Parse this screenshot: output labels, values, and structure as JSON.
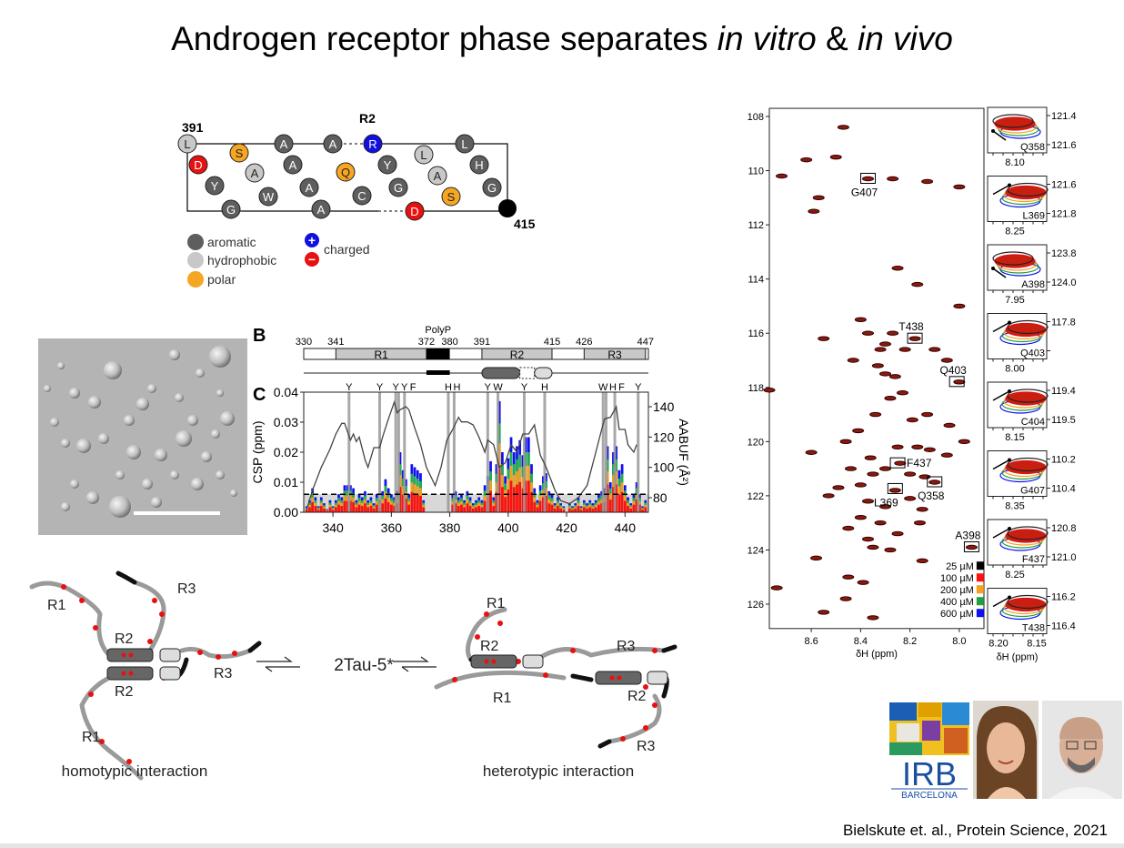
{
  "slide": {
    "title_prefix": "Androgen receptor phase separates ",
    "title_vitro": "in vitro",
    "title_amp": " & ",
    "title_vivo": "in vivo",
    "citation": "Bielskute et. al., Protein Science, 2021"
  },
  "helical_wheel": {
    "region_label": "R2",
    "start_label": "391",
    "end_label": "415",
    "residues": [
      {
        "aa": "L",
        "type": "hydrophobic"
      },
      {
        "aa": "D",
        "type": "negative"
      },
      {
        "aa": "Y",
        "type": "aromatic"
      },
      {
        "aa": "G",
        "type": "aromatic"
      },
      {
        "aa": "S",
        "type": "polar"
      },
      {
        "aa": "A",
        "type": "hydrophobic"
      },
      {
        "aa": "W",
        "type": "aromatic"
      },
      {
        "aa": "A",
        "type": "aromatic"
      },
      {
        "aa": "A",
        "type": "aromatic"
      },
      {
        "aa": "A",
        "type": "aromatic"
      },
      {
        "aa": "A",
        "type": "aromatic"
      },
      {
        "aa": "A",
        "type": "aromatic"
      },
      {
        "aa": "Q",
        "type": "polar"
      },
      {
        "aa": "C",
        "type": "aromatic"
      },
      {
        "aa": "R",
        "type": "positive"
      },
      {
        "aa": "Y",
        "type": "aromatic"
      },
      {
        "aa": "G",
        "type": "aromatic"
      },
      {
        "aa": "D",
        "type": "negative"
      },
      {
        "aa": "L",
        "type": "hydrophobic"
      },
      {
        "aa": "A",
        "type": "hydrophobic"
      },
      {
        "aa": "S",
        "type": "polar"
      },
      {
        "aa": "L",
        "type": "aromatic"
      },
      {
        "aa": "H",
        "type": "aromatic"
      },
      {
        "aa": "G",
        "type": "aromatic"
      }
    ],
    "legend": {
      "aromatic": "aromatic",
      "hydrophobic": "hydrophobic",
      "polar": "polar",
      "charged": "charged",
      "plus": "+",
      "minus": "−"
    },
    "colors": {
      "aromatic": "#5e5e5e",
      "hydrophobic": "#c8c8c8",
      "polar": "#f5a623",
      "positive": "#1010e0",
      "negative": "#e81010",
      "end": "#000000"
    }
  },
  "panel_b": {
    "letter": "B",
    "polyp_label": "PolyP",
    "boundaries": [
      "330",
      "341",
      "372",
      "380",
      "391",
      "415",
      "426",
      "447"
    ],
    "regions": [
      "R1",
      "R2",
      "R3"
    ]
  },
  "chart_data": [
    {
      "type": "bar",
      "title": "",
      "panel_letter": "C",
      "xlabel": "",
      "ylabel": "CSP (ppm)",
      "y2label": "AABUF (Å²)",
      "xlim": [
        330,
        448
      ],
      "ylim": [
        0,
        0.04
      ],
      "y2lim": [
        70,
        149
      ],
      "xticks": [
        "340",
        "360",
        "380",
        "400",
        "420",
        "440"
      ],
      "yticks": [
        "0.00",
        "0.01",
        "0.02",
        "0.03",
        "0.04"
      ],
      "y2ticks": [
        "80",
        "100",
        "120",
        "140"
      ],
      "threshold": 0.006,
      "residue_start": 331,
      "series_colors": {
        "100 µM": "#ff1010",
        "200 µM": "#f5a020",
        "400 µM": "#20b050",
        "600 µM": "#1010f0"
      },
      "series_fractions": {
        "100 µM": 0.42,
        "200 µM": 0.62,
        "400 µM": 0.8,
        "600 µM": 1.0
      },
      "csp_600": [
        0.002,
        0.004,
        0.008,
        0.005,
        0.002,
        0.005,
        0.003,
        0.001,
        0.004,
        0.002,
        0.004,
        0.006,
        0.005,
        0.009,
        0.009,
        0.009,
        0.008,
        0.004,
        0.006,
        0.005,
        0.007,
        0.004,
        0.005,
        0.003,
        0.006,
        0.004,
        0.007,
        0.011,
        0.008,
        0.006,
        0.005,
        0.007,
        0.02,
        0.014,
        0.011,
        0.006,
        0.016,
        0.015,
        0.014,
        0.013,
        0.004,
        0,
        0,
        0,
        0,
        0,
        0,
        0,
        0,
        0,
        0.006,
        0.007,
        0.005,
        0.006,
        0.004,
        0.007,
        0.005,
        0.003,
        0.004,
        0.005,
        0.004,
        0.009,
        0.012,
        0.017,
        0.005,
        0.016,
        0.037,
        0.02,
        0.012,
        0.018,
        0.025,
        0.02,
        0.022,
        0.024,
        0.019,
        0.025,
        0.025,
        0.016,
        0.008,
        0.004,
        0.009,
        0.012,
        0.013,
        0.007,
        0.006,
        0.003,
        0.005,
        0.003,
        0.002,
        0.0,
        0.003,
        0.002,
        0.003,
        0.005,
        0.002,
        0.004,
        0.003,
        0.004,
        0.003,
        0.004,
        0.006,
        0.007,
        0.008,
        0.022,
        0.01,
        0.02,
        0.022,
        0.014,
        0.016,
        0.009,
        0.005,
        0.003,
        0.006,
        0.01,
        0.006,
        0.002,
        0.004
      ],
      "aabuf": [
        [
          331,
          72
        ],
        [
          333,
          85
        ],
        [
          336,
          100
        ],
        [
          339,
          112
        ],
        [
          341,
          122
        ],
        [
          343,
          129
        ],
        [
          344,
          129
        ],
        [
          346,
          118
        ],
        [
          347,
          122
        ],
        [
          348,
          117
        ],
        [
          349,
          120
        ],
        [
          351,
          105
        ],
        [
          352,
          100
        ],
        [
          354,
          113
        ],
        [
          356,
          113
        ],
        [
          357,
          120
        ],
        [
          359,
          132
        ],
        [
          361,
          143
        ],
        [
          362,
          136
        ],
        [
          363,
          138
        ],
        [
          365,
          140
        ],
        [
          366,
          138
        ],
        [
          368,
          126
        ],
        [
          370,
          115
        ],
        [
          372,
          100
        ],
        [
          375,
          88
        ],
        [
          377,
          100
        ],
        [
          379,
          118
        ],
        [
          381,
          125
        ],
        [
          383,
          133
        ],
        [
          384,
          130
        ],
        [
          386,
          130
        ],
        [
          388,
          128
        ],
        [
          390,
          120
        ],
        [
          392,
          110
        ],
        [
          393,
          118
        ],
        [
          395,
          115
        ],
        [
          397,
          100
        ],
        [
          399,
          103
        ],
        [
          401,
          115
        ],
        [
          403,
          110
        ],
        [
          405,
          122
        ],
        [
          407,
          122
        ],
        [
          409,
          128
        ],
        [
          411,
          108
        ],
        [
          413,
          100
        ],
        [
          416,
          85
        ],
        [
          418,
          78
        ],
        [
          421,
          76
        ],
        [
          424,
          80
        ],
        [
          427,
          88
        ],
        [
          430,
          110
        ],
        [
          432,
          125
        ],
        [
          433,
          132
        ],
        [
          435,
          133
        ],
        [
          437,
          140
        ],
        [
          438,
          125
        ],
        [
          440,
          125
        ],
        [
          441,
          115
        ],
        [
          443,
          110
        ],
        [
          444,
          115
        ]
      ],
      "aromatic_markers": [
        {
          "residue": 345.5,
          "label": "Y"
        },
        {
          "residue": 356,
          "label": "Y"
        },
        {
          "residue": 361.5,
          "label": "Y"
        },
        {
          "residue": 362.5,
          "label": "Y"
        },
        {
          "residue": 364.5,
          "label": "F"
        },
        {
          "residue": 379.5,
          "label": "H"
        },
        {
          "residue": 381.5,
          "label": "H"
        },
        {
          "residue": 393,
          "label": "Y"
        },
        {
          "residue": 396.5,
          "label": "W"
        },
        {
          "residue": 405.5,
          "label": "Y"
        },
        {
          "residue": 412.5,
          "label": "H"
        },
        {
          "residue": 432.5,
          "label": "W"
        },
        {
          "residue": 433.5,
          "label": "H"
        },
        {
          "residue": 436.5,
          "label": "F"
        },
        {
          "residue": 444.5,
          "label": "Y"
        }
      ]
    },
    {
      "type": "scatter",
      "title": "",
      "xlabel": "δH (ppm)",
      "ylabel": "",
      "xlim": [
        8.77,
        7.9
      ],
      "ylim": [
        107.7,
        126.9
      ],
      "xticks": [
        "8.6",
        "8.4",
        "8.2",
        "8.0"
      ],
      "yticks": [
        "108",
        "110",
        "112",
        "114",
        "116",
        "118",
        "120",
        "122",
        "124",
        "126"
      ],
      "peaks": [
        [
          8.47,
          108.4
        ],
        [
          8.62,
          109.6
        ],
        [
          8.72,
          110.2
        ],
        [
          8.37,
          110.3
        ],
        [
          8.27,
          110.3
        ],
        [
          8.13,
          110.4
        ],
        [
          8.57,
          111.0
        ],
        [
          8.59,
          111.5
        ],
        [
          8.5,
          109.5
        ],
        [
          8.0,
          110.6
        ],
        [
          8.25,
          113.6
        ],
        [
          8.17,
          114.2
        ],
        [
          8.0,
          115.0
        ],
        [
          8.4,
          115.5
        ],
        [
          8.37,
          116.0
        ],
        [
          8.27,
          116.0
        ],
        [
          8.18,
          116.2
        ],
        [
          8.3,
          116.4
        ],
        [
          8.32,
          116.6
        ],
        [
          8.22,
          116.6
        ],
        [
          8.55,
          116.2
        ],
        [
          8.1,
          116.6
        ],
        [
          8.05,
          117.0
        ],
        [
          8.43,
          117.0
        ],
        [
          8.33,
          117.2
        ],
        [
          8.3,
          117.5
        ],
        [
          8.26,
          117.6
        ],
        [
          8.0,
          117.8
        ],
        [
          8.77,
          118.1
        ],
        [
          8.23,
          118.2
        ],
        [
          8.28,
          118.4
        ],
        [
          8.13,
          119.0
        ],
        [
          8.34,
          119.0
        ],
        [
          8.19,
          119.2
        ],
        [
          8.04,
          119.4
        ],
        [
          8.41,
          119.6
        ],
        [
          8.46,
          120.0
        ],
        [
          8.25,
          120.2
        ],
        [
          8.17,
          120.2
        ],
        [
          7.98,
          120.0
        ],
        [
          8.12,
          120.3
        ],
        [
          8.05,
          120.5
        ],
        [
          8.6,
          120.4
        ],
        [
          8.36,
          120.6
        ],
        [
          8.24,
          120.8
        ],
        [
          8.3,
          121.0
        ],
        [
          8.2,
          121.2
        ],
        [
          8.35,
          121.2
        ],
        [
          8.44,
          121.0
        ],
        [
          8.1,
          121.5
        ],
        [
          8.14,
          121.3
        ],
        [
          8.26,
          121.8
        ],
        [
          8.4,
          121.6
        ],
        [
          8.49,
          121.7
        ],
        [
          8.53,
          122.0
        ],
        [
          8.2,
          122.1
        ],
        [
          8.37,
          122.2
        ],
        [
          8.3,
          122.4
        ],
        [
          8.15,
          122.5
        ],
        [
          8.4,
          122.8
        ],
        [
          8.32,
          123.0
        ],
        [
          8.16,
          123.0
        ],
        [
          8.45,
          123.2
        ],
        [
          8.25,
          123.4
        ],
        [
          8.37,
          123.6
        ],
        [
          8.35,
          123.9
        ],
        [
          8.28,
          124.0
        ],
        [
          7.95,
          123.9
        ],
        [
          8.58,
          124.3
        ],
        [
          8.15,
          124.4
        ],
        [
          8.45,
          125.0
        ],
        [
          8.39,
          125.2
        ],
        [
          8.74,
          125.4
        ],
        [
          8.46,
          125.8
        ],
        [
          8.55,
          126.3
        ],
        [
          8.35,
          126.5
        ]
      ],
      "labeled_peaks": [
        {
          "label": "G407",
          "x": 8.37,
          "y": 110.3
        },
        {
          "label": "T438",
          "x": 8.18,
          "y": 116.2
        },
        {
          "label": "Q403",
          "x": 8.01,
          "y": 117.8
        },
        {
          "label": "F437",
          "x": 8.25,
          "y": 120.8
        },
        {
          "label": "Q358",
          "x": 8.1,
          "y": 121.5
        },
        {
          "label": "L369",
          "x": 8.26,
          "y": 121.75
        },
        {
          "label": "A398",
          "x": 7.95,
          "y": 123.9
        }
      ],
      "legend": [
        {
          "label": "25 µM",
          "color": "#000000"
        },
        {
          "label": "100 µM",
          "color": "#ff1010"
        },
        {
          "label": "200 µM",
          "color": "#f5a020"
        },
        {
          "label": "400 µM",
          "color": "#20a040"
        },
        {
          "label": "600 µM",
          "color": "#1010f0"
        }
      ],
      "insets": [
        {
          "label": "Q358",
          "yticks": [
            "121.4",
            "121.6"
          ],
          "xtick": "8.10",
          "arrow": "up-left"
        },
        {
          "label": "L369",
          "yticks": [
            "121.6",
            "121.8"
          ],
          "xtick": "8.25",
          "arrow": "up-right"
        },
        {
          "label": "A398",
          "yticks": [
            "123.8",
            "124.0"
          ],
          "xtick": "7.95",
          "arrow": "up-left"
        },
        {
          "label": "Q403",
          "yticks": [
            "117.8",
            ""
          ],
          "xtick": "8.00",
          "arrow": "up-right"
        },
        {
          "label": "C404",
          "yticks": [
            "119.4",
            "119.5"
          ],
          "xtick": "8.15",
          "arrow": "up-right"
        },
        {
          "label": "G407",
          "yticks": [
            "110.2",
            "110.4"
          ],
          "xtick": "8.35",
          "arrow": "up-right"
        },
        {
          "label": "F437",
          "yticks": [
            "120.8",
            "121.0"
          ],
          "xtick": "8.25",
          "arrow": "up-right"
        },
        {
          "label": "T438",
          "yticks": [
            "116.2",
            "116.4"
          ],
          "xtick": "8.20",
          "xtick2": "8.15",
          "arrow": "up-right"
        }
      ],
      "inset_xlabel": "δH (ppm)"
    }
  ],
  "interaction_diagram": {
    "center_label": "2Tau-5*",
    "left_caption": "homotypic interaction",
    "right_caption": "heterotypic interaction",
    "labels": {
      "r1": "R1",
      "r2": "R2",
      "r3": "R3"
    }
  },
  "logo": {
    "line1": "IRB",
    "line2": "BARCELONA"
  }
}
